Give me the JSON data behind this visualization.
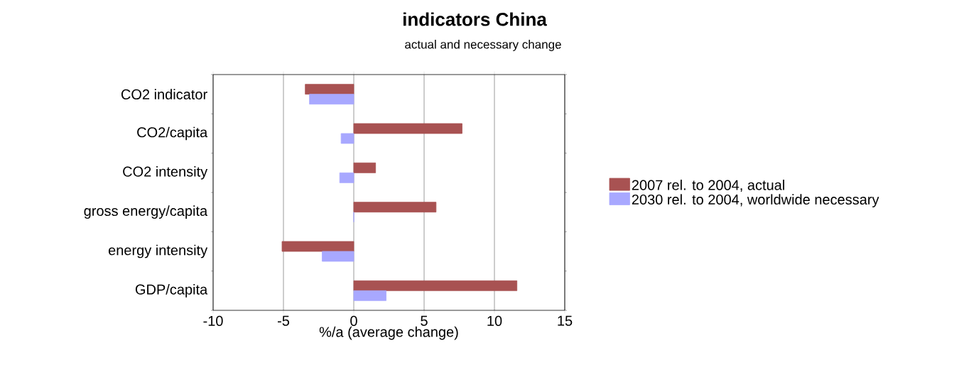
{
  "chart_data": {
    "type": "bar",
    "orientation": "horizontal",
    "title": "indicators  China",
    "subtitle": "actual and necessary change",
    "xlabel": "%/a  (average change)",
    "categories": [
      "CO2 indicator",
      "CO2/capita",
      "CO2 intensity",
      "gross energy/capita",
      "energy intensity",
      "GDP/capita"
    ],
    "series": [
      {
        "name": "2007 rel. to 2004, actual",
        "color": "#a85252",
        "values": [
          -3.45,
          7.7,
          1.55,
          5.85,
          -5.1,
          11.6
        ]
      },
      {
        "name": "2030 rel. to 2004, worldwide necessary",
        "color": "#a8a8ff",
        "values": [
          -3.15,
          -0.9,
          -1.0,
          0,
          -2.25,
          2.3
        ]
      }
    ],
    "xlim": [
      -10,
      15
    ],
    "xticks": [
      -10,
      -5,
      0,
      5,
      10,
      15
    ],
    "grid": "x",
    "legend": "right"
  }
}
